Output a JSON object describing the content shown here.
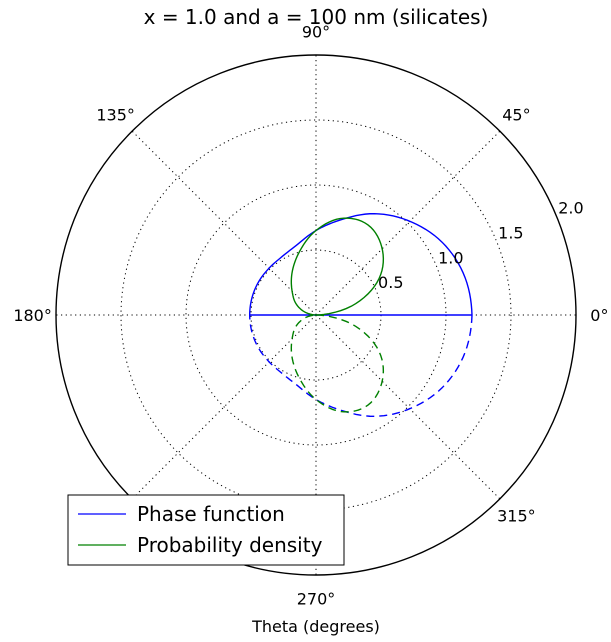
{
  "chart_data": {
    "type": "line",
    "projection": "polar",
    "title": "x = 1.0 and a = 100 nm (silicates)",
    "xlabel": "Theta (degrees)",
    "angle_ticks": [
      "0°",
      "45°",
      "90°",
      "135°",
      "180°",
      "270°",
      "315°"
    ],
    "radial_ticks": [
      "0.5",
      "1.0",
      "1.5",
      "2.0"
    ],
    "radial_tick_values": [
      0.5,
      1.0,
      1.5,
      2.0
    ],
    "rlim": [
      0,
      2.0
    ],
    "grid": true,
    "legend_position": "lower-left",
    "colors": {
      "phase": "#0000ff",
      "prob": "#008000",
      "axis": "#000000"
    },
    "series": [
      {
        "name": "Phase function",
        "color": "#0000ff",
        "style": "solid (0–180°), dashed mirror (180–360°)",
        "theta_deg": [
          0,
          15,
          30,
          45,
          60,
          75,
          90,
          105,
          120,
          135,
          150,
          165,
          180
        ],
        "r": [
          1.2,
          1.18,
          1.12,
          1.02,
          0.9,
          0.76,
          0.65,
          0.56,
          0.52,
          0.51,
          0.51,
          0.51,
          0.51
        ]
      },
      {
        "name": "Probability density",
        "color": "#008000",
        "style": "solid (0–180°), dashed mirror (180–360°)",
        "theta_deg": [
          0,
          15,
          30,
          45,
          60,
          75,
          90,
          105,
          120,
          135,
          150,
          165,
          180
        ],
        "r": [
          0.0,
          0.3,
          0.56,
          0.72,
          0.8,
          0.77,
          0.65,
          0.5,
          0.37,
          0.26,
          0.18,
          0.09,
          0.0
        ]
      }
    ]
  }
}
